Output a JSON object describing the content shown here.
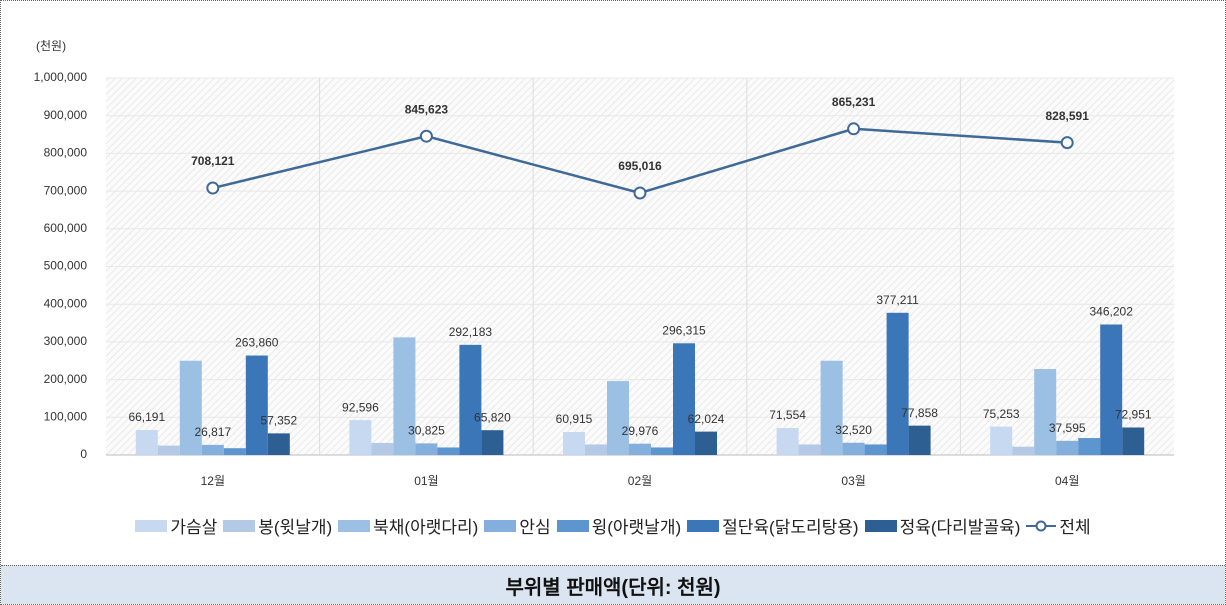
{
  "chart_data": {
    "type": "bar",
    "title": "부위별 판매액(단위: 천원)",
    "unit_label": "(천원)",
    "categories": [
      "12월",
      "01월",
      "02월",
      "03월",
      "04월"
    ],
    "ylim": [
      0,
      1000000
    ],
    "yticks": [
      0,
      {
        "value": 100000,
        "label": "100,000"
      },
      {
        "value": 200000,
        "label": "200,000"
      },
      {
        "value": 300000,
        "label": "300,000"
      },
      {
        "value": 400000,
        "label": "400,000"
      },
      {
        "value": 500000,
        "label": "500,000"
      },
      {
        "value": 600000,
        "label": "600,000"
      },
      {
        "value": 700000,
        "label": "700,000"
      },
      {
        "value": 800000,
        "label": "800,000"
      },
      {
        "value": 900000,
        "label": "900,000"
      },
      {
        "value": 1000000,
        "label": "1,000,000"
      }
    ],
    "series": [
      {
        "name": "가슴살",
        "color": "#c6d9f0",
        "values": [
          66191,
          92596,
          60915,
          71554,
          75253
        ],
        "value_labels": [
          "66,191",
          "92,596",
          "60,915",
          "71,554",
          "75,253"
        ]
      },
      {
        "name": "봉(윗날개)",
        "color": "#b4c9e6",
        "values": [
          25000,
          32000,
          28000,
          28000,
          22000
        ]
      },
      {
        "name": "북채(아랫다리)",
        "color": "#9cbfe4",
        "values": [
          250000,
          312000,
          196000,
          250000,
          228000
        ]
      },
      {
        "name": "안심",
        "color": "#84afdc",
        "values": [
          26817,
          30825,
          29976,
          32520,
          37595
        ],
        "value_labels": [
          "26,817",
          "30,825",
          "29,976",
          "32,520",
          "37,595"
        ]
      },
      {
        "name": "윙(아랫날개)",
        "color": "#5d95cf",
        "values": [
          18000,
          20000,
          20000,
          28000,
          45000
        ]
      },
      {
        "name": "절단육(닭도리탕용)",
        "color": "#3a76b8",
        "values": [
          263860,
          292183,
          296315,
          377211,
          346202
        ],
        "value_labels": [
          "263,860",
          "292,183",
          "296,315",
          "377,211",
          "346,202"
        ]
      },
      {
        "name": "정육(다리발골육)",
        "color": "#2d5f92",
        "values": [
          57352,
          65820,
          62024,
          77858,
          72951
        ],
        "value_labels": [
          "57,352",
          "65,820",
          "62,024",
          "77,858",
          "72,951"
        ]
      },
      {
        "name": "전체",
        "type": "line",
        "color": "#3f6a98",
        "values": [
          708121,
          845623,
          695016,
          865231,
          828591
        ],
        "value_labels": [
          "708,121",
          "845,623",
          "695,016",
          "865,231",
          "828,591"
        ]
      }
    ]
  }
}
